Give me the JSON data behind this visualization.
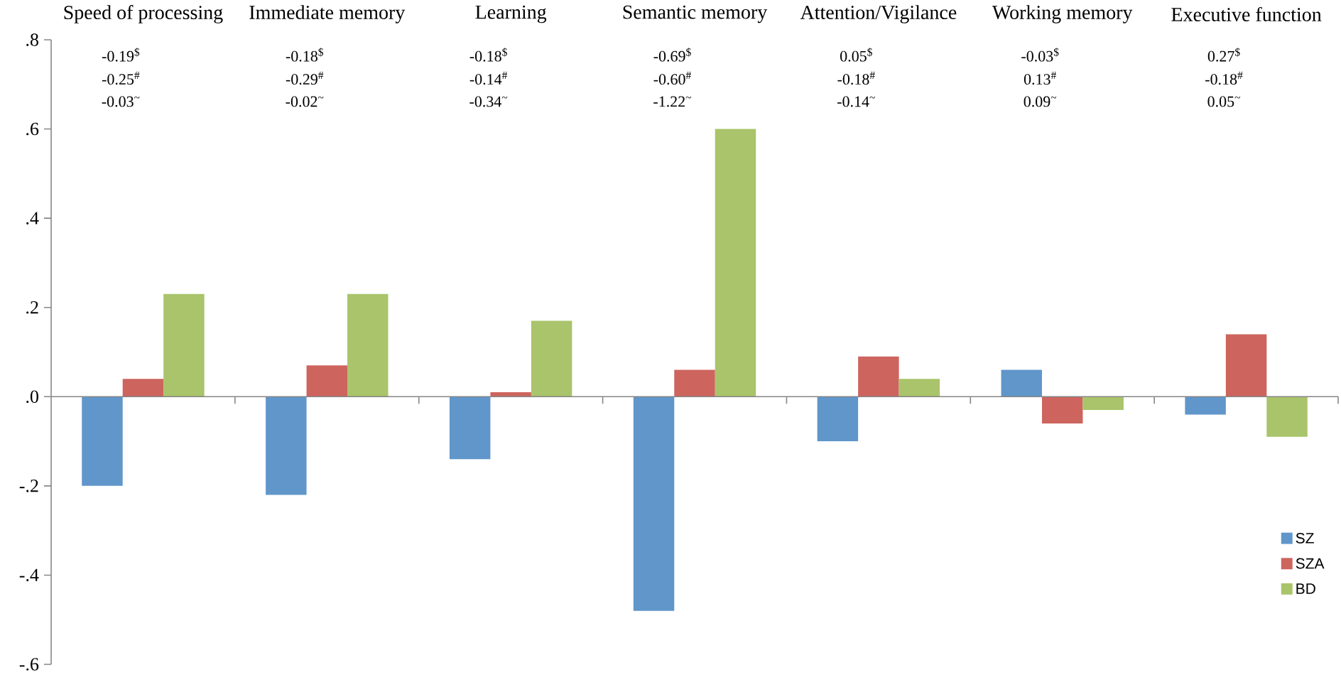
{
  "chart_data": {
    "type": "bar",
    "categories": [
      "Speed of processing",
      "Immediate memory",
      "Learning",
      "Semantic memory",
      "Attention/Vigilance",
      "Working memory",
      "Executive function"
    ],
    "series": [
      {
        "name": "SZ",
        "color": "#6096ca",
        "values": [
          -0.2,
          -0.22,
          -0.14,
          -0.48,
          -0.1,
          0.06,
          -0.04
        ]
      },
      {
        "name": "SZA",
        "color": "#cd645e",
        "values": [
          0.04,
          0.07,
          0.01,
          0.06,
          0.09,
          -0.06,
          0.14
        ]
      },
      {
        "name": "BD",
        "color": "#a9c46a",
        "values": [
          0.23,
          0.23,
          0.17,
          0.6,
          0.04,
          -0.03,
          -0.09
        ]
      }
    ],
    "ylim": [
      -0.6,
      0.8
    ],
    "yticks": [
      {
        "value": -0.6,
        "label": "-.6"
      },
      {
        "value": -0.4,
        "label": "-.4"
      },
      {
        "value": -0.2,
        "label": "-.2"
      },
      {
        "value": 0,
        "label": ".0"
      },
      {
        "value": 0.2,
        "label": ".2"
      },
      {
        "value": 0.4,
        "label": ".4"
      },
      {
        "value": 0.6,
        "label": ".6"
      },
      {
        "value": 0.8,
        "label": ".8"
      }
    ],
    "legend": "bottom right",
    "annotations": [
      "-0.19$^{$}$",
      "-0.25$^{#}$",
      "-0.03$^{~}$",
      "-0.18$^{$}$",
      "-0.29$^{#}$",
      "-0.02$^{~}$",
      "-0.18$^{$}$",
      "-0.14$^{#}$",
      "-0.34$^{~}$",
      "-0.69$^{$}$",
      "-0.60$^{#}$",
      "-1.22$^{~}$",
      "0.05$^{$}$",
      "-0.18$^{#}$",
      "-0.14$^{~}$",
      "-0.03$^{$}$",
      "0.13$^{#}$",
      "0.09$^{~}$",
      "0.27$^{$}$",
      "-0.18$^{#}$",
      "0.05$^{~}$"
    ]
  }
}
